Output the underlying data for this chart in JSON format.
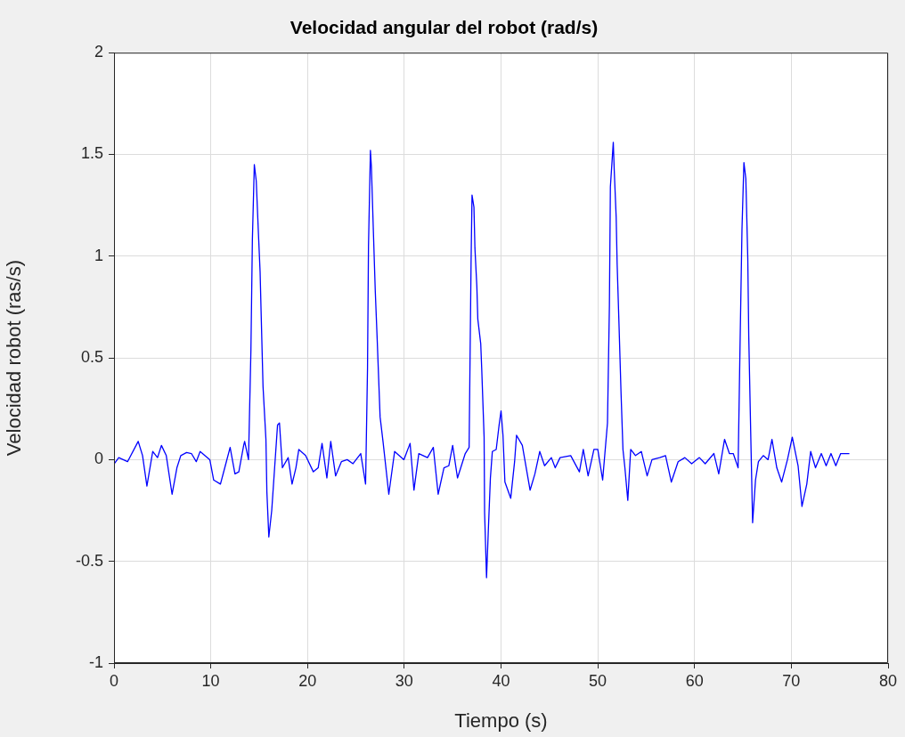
{
  "chart_data": {
    "type": "line",
    "title": "Velocidad angular del robot (rad/s)",
    "xlabel": "Tiempo (s)",
    "ylabel": "Velocidad robot (ras/s)",
    "xlim": [
      0,
      80
    ],
    "xticks": [
      0,
      10,
      20,
      30,
      40,
      50,
      60,
      70,
      80
    ],
    "ylim": [
      -1,
      2
    ],
    "yticks": [
      -1,
      -0.5,
      0,
      0.5,
      1,
      1.5,
      2
    ],
    "grid": true,
    "marker": "none",
    "line_style": "solid",
    "series": [
      {
        "color": "#0000ff",
        "x": [
          0.03,
          0.49,
          1.4,
          2.5,
          2.95,
          3.4,
          4.0,
          4.5,
          4.9,
          5.4,
          6.0,
          6.5,
          6.9,
          7.5,
          8.0,
          8.5,
          8.9,
          9.9,
          10.3,
          11.0,
          11.5,
          12.0,
          12.5,
          12.9,
          13.4,
          13.5,
          13.9,
          14.15,
          14.3,
          14.5,
          14.7,
          14.9,
          15.1,
          15.2,
          15.4,
          15.7,
          15.8,
          16.0,
          16.3,
          16.6,
          16.9,
          17.1,
          17.4,
          18.0,
          18.4,
          18.8,
          19.1,
          19.8,
          20.6,
          21.1,
          21.5,
          22.0,
          22.4,
          22.9,
          23.5,
          24.1,
          24.7,
          25.5,
          26.0,
          26.2,
          26.3,
          26.5,
          26.6,
          26.8,
          27.0,
          27.2,
          27.35,
          27.5,
          27.8,
          28.4,
          29.0,
          29.96,
          30.6,
          31.0,
          31.5,
          32.4,
          33.0,
          33.5,
          34.1,
          34.6,
          35.0,
          35.5,
          36.3,
          36.7,
          36.8,
          36.9,
          37.0,
          37.2,
          37.3,
          37.5,
          37.6,
          37.9,
          38.0,
          38.25,
          38.3,
          38.5,
          38.7,
          38.9,
          39.1,
          39.5,
          39.8,
          40.0,
          40.2,
          40.4,
          41.0,
          41.4,
          41.6,
          42.2,
          43.0,
          43.5,
          44.0,
          44.5,
          45.2,
          45.6,
          46.1,
          47.2,
          48.1,
          48.5,
          49.0,
          49.6,
          50.0,
          50.5,
          51.0,
          51.2,
          51.3,
          51.6,
          51.7,
          51.9,
          52.0,
          52.2,
          52.4,
          52.6,
          52.8,
          53.1,
          53.4,
          53.9,
          54.5,
          55.1,
          55.6,
          56.4,
          57.0,
          57.6,
          58.3,
          59.0,
          59.7,
          60.5,
          61.1,
          62.0,
          62.5,
          63.1,
          63.6,
          64.0,
          64.5,
          64.7,
          64.9,
          65.1,
          65.3,
          65.5,
          65.6,
          65.8,
          66.0,
          66.3,
          66.6,
          67.1,
          67.6,
          68.0,
          68.5,
          69.0,
          69.6,
          70.1,
          70.7,
          71.1,
          71.6,
          72.0,
          72.5,
          73.1,
          73.6,
          74.1,
          74.6,
          75.1,
          76.0
        ],
        "values": [
          -0.02,
          0.01,
          -0.01,
          0.09,
          0.02,
          -0.13,
          0.04,
          0.01,
          0.07,
          0.02,
          -0.17,
          -0.04,
          0.02,
          0.035,
          0.03,
          -0.01,
          0.04,
          0.0,
          -0.1,
          -0.12,
          -0.03,
          0.06,
          -0.07,
          -0.06,
          0.07,
          0.09,
          0.0,
          0.54,
          1.08,
          1.45,
          1.37,
          1.14,
          0.92,
          0.73,
          0.36,
          0.1,
          -0.16,
          -0.38,
          -0.25,
          -0.04,
          0.17,
          0.18,
          -0.04,
          0.01,
          -0.12,
          -0.04,
          0.05,
          0.02,
          -0.06,
          -0.04,
          0.08,
          -0.09,
          0.09,
          -0.08,
          -0.01,
          0.0,
          -0.02,
          0.03,
          -0.12,
          0.45,
          1.05,
          1.52,
          1.44,
          1.13,
          0.83,
          0.59,
          0.4,
          0.21,
          0.09,
          -0.17,
          0.04,
          0.0,
          0.08,
          -0.15,
          0.03,
          0.01,
          0.06,
          -0.17,
          -0.04,
          -0.03,
          0.07,
          -0.09,
          0.03,
          0.06,
          0.51,
          0.96,
          1.3,
          1.24,
          1.04,
          0.85,
          0.69,
          0.57,
          0.45,
          0.11,
          -0.26,
          -0.58,
          -0.33,
          -0.09,
          0.04,
          0.05,
          0.17,
          0.24,
          0.12,
          -0.11,
          -0.19,
          -0.01,
          0.12,
          0.07,
          -0.15,
          -0.07,
          0.04,
          -0.03,
          0.01,
          -0.04,
          0.01,
          0.02,
          -0.06,
          0.05,
          -0.08,
          0.05,
          0.05,
          -0.1,
          0.18,
          0.76,
          1.34,
          1.56,
          1.42,
          1.19,
          0.96,
          0.65,
          0.33,
          0.05,
          -0.04,
          -0.2,
          0.05,
          0.02,
          0.04,
          -0.08,
          0.0,
          0.01,
          0.02,
          -0.11,
          -0.01,
          0.01,
          -0.02,
          0.01,
          -0.02,
          0.03,
          -0.07,
          0.1,
          0.03,
          0.03,
          -0.04,
          0.56,
          1.13,
          1.46,
          1.38,
          0.99,
          0.61,
          0.14,
          -0.31,
          -0.1,
          -0.01,
          0.02,
          0.0,
          0.1,
          -0.04,
          -0.11,
          0.0,
          0.11,
          -0.03,
          -0.23,
          -0.12,
          0.04,
          -0.04,
          0.03,
          -0.03,
          0.03,
          -0.03,
          0.03,
          0.03
        ]
      }
    ]
  }
}
